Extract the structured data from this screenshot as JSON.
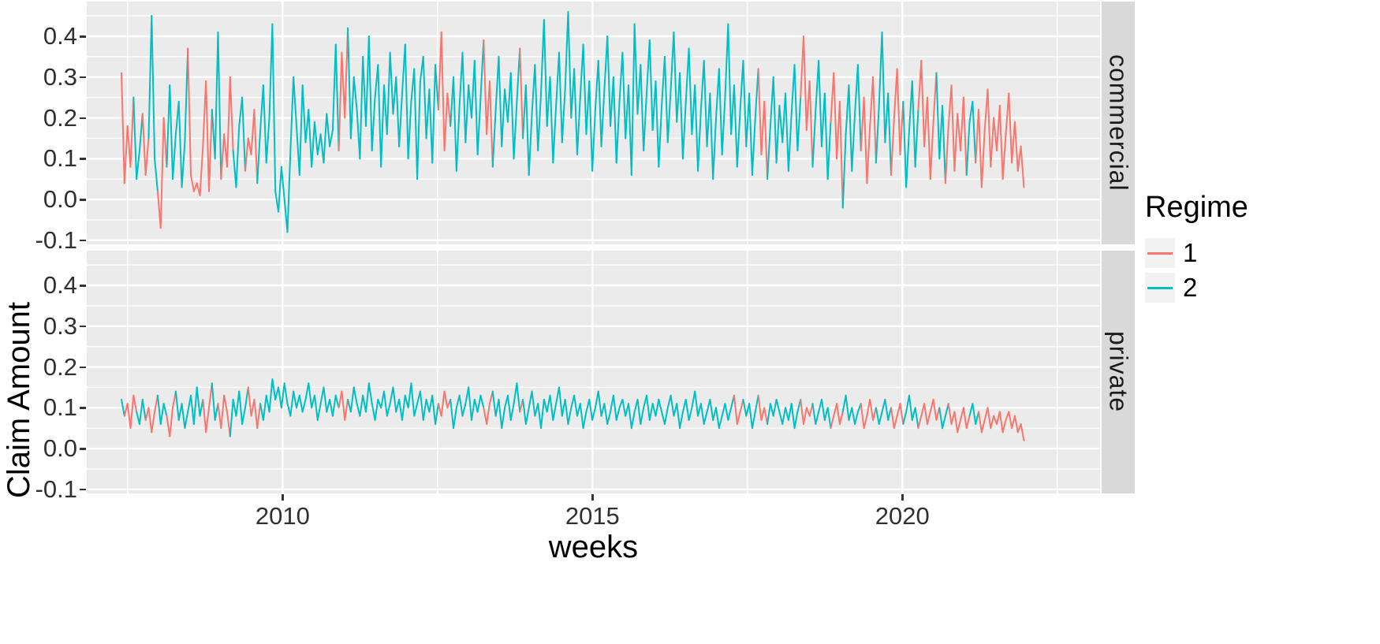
{
  "figure": {
    "y_axis_title": "Claim Amount",
    "x_axis_title": "weeks",
    "legend": {
      "title": "Regime",
      "entries": [
        {
          "label": "1",
          "regime": "1"
        },
        {
          "label": "2",
          "regime": "2"
        }
      ]
    },
    "colors": {
      "panel_bg": "#EBEBEB",
      "strip_bg": "#D9D9D9",
      "grid": "#FFFFFF",
      "regime1": "#F8766D",
      "regime2": "#00BFC4"
    }
  },
  "chart_data": {
    "type": "line",
    "title": "",
    "xlabel": "weeks",
    "ylabel": "Claim Amount",
    "x_ticks": [
      2010,
      2015,
      2020
    ],
    "x_minor_ticks": [
      2007.5,
      2012.5,
      2017.5,
      2022.5
    ],
    "y_ticks": [
      -0.1,
      0.0,
      0.1,
      0.2,
      0.3,
      0.4
    ],
    "y_minor_ticks": [
      -0.05,
      0.05,
      0.15,
      0.25,
      0.35,
      0.45
    ],
    "xlim": [
      2006.84,
      2023.19
    ],
    "ylim": [
      -0.11,
      0.485
    ],
    "x_start": 2007.4,
    "x_step": 0.0487,
    "legend_title": "Regime",
    "legend_position": "right",
    "grid": true,
    "regimes": {
      "1": "#F8766D",
      "2": "#00BFC4"
    },
    "facets": [
      {
        "name": "commercial",
        "y": [
          0.31,
          0.04,
          0.18,
          0.08,
          0.25,
          0.05,
          0.12,
          0.21,
          0.06,
          0.15,
          0.45,
          0.1,
          0.02,
          -0.07,
          0.2,
          0.08,
          0.28,
          0.05,
          0.16,
          0.24,
          0.03,
          0.14,
          0.37,
          0.06,
          0.02,
          0.04,
          0.01,
          0.13,
          0.29,
          0.02,
          0.22,
          0.1,
          0.41,
          0.05,
          0.16,
          0.08,
          0.3,
          0.12,
          0.03,
          0.18,
          0.25,
          0.07,
          0.15,
          0.11,
          0.22,
          0.04,
          0.17,
          0.28,
          0.09,
          0.2,
          0.43,
          0.02,
          -0.03,
          0.08,
          0.0,
          -0.08,
          0.12,
          0.3,
          0.18,
          0.06,
          0.28,
          0.14,
          0.22,
          0.08,
          0.19,
          0.11,
          0.16,
          0.09,
          0.21,
          0.13,
          0.17,
          0.38,
          0.12,
          0.36,
          0.2,
          0.42,
          0.15,
          0.3,
          0.22,
          0.1,
          0.35,
          0.18,
          0.4,
          0.12,
          0.25,
          0.33,
          0.08,
          0.28,
          0.16,
          0.36,
          0.21,
          0.3,
          0.13,
          0.26,
          0.38,
          0.1,
          0.24,
          0.32,
          0.05,
          0.29,
          0.35,
          0.15,
          0.27,
          0.09,
          0.33,
          0.22,
          0.41,
          0.12,
          0.26,
          0.18,
          0.3,
          0.07,
          0.23,
          0.36,
          0.14,
          0.28,
          0.2,
          0.34,
          0.11,
          0.25,
          0.39,
          0.16,
          0.29,
          0.08,
          0.22,
          0.35,
          0.13,
          0.27,
          0.19,
          0.31,
          0.1,
          0.24,
          0.37,
          0.15,
          0.28,
          0.06,
          0.21,
          0.33,
          0.12,
          0.26,
          0.44,
          0.18,
          0.3,
          0.09,
          0.23,
          0.36,
          0.14,
          0.27,
          0.46,
          0.2,
          0.32,
          0.11,
          0.25,
          0.38,
          0.16,
          0.29,
          0.07,
          0.22,
          0.34,
          0.13,
          0.27,
          0.4,
          0.18,
          0.3,
          0.09,
          0.24,
          0.36,
          0.15,
          0.28,
          0.06,
          0.43,
          0.21,
          0.33,
          0.12,
          0.26,
          0.39,
          0.17,
          0.29,
          0.08,
          0.23,
          0.35,
          0.14,
          0.27,
          0.41,
          0.19,
          0.31,
          0.1,
          0.24,
          0.37,
          0.16,
          0.28,
          0.07,
          0.22,
          0.34,
          0.13,
          0.26,
          0.05,
          0.2,
          0.32,
          0.11,
          0.25,
          0.43,
          0.16,
          0.28,
          0.08,
          0.22,
          0.34,
          0.13,
          0.26,
          0.06,
          0.2,
          0.32,
          0.11,
          0.24,
          0.05,
          0.18,
          0.3,
          0.09,
          0.23,
          0.14,
          0.26,
          0.07,
          0.21,
          0.33,
          0.12,
          0.25,
          0.4,
          0.17,
          0.29,
          0.08,
          0.22,
          0.34,
          0.13,
          0.26,
          0.05,
          0.19,
          0.31,
          0.1,
          0.24,
          -0.02,
          0.16,
          0.28,
          0.07,
          0.21,
          0.33,
          0.12,
          0.25,
          0.04,
          0.18,
          0.3,
          0.09,
          0.23,
          0.41,
          0.14,
          0.26,
          0.06,
          0.2,
          0.32,
          0.11,
          0.24,
          0.03,
          0.17,
          0.29,
          0.08,
          0.22,
          0.34,
          0.13,
          0.25,
          0.05,
          0.19,
          0.31,
          0.1,
          0.23,
          0.04,
          0.18,
          0.28,
          0.07,
          0.21,
          0.12,
          0.25,
          0.06,
          0.19,
          0.24,
          0.09,
          0.22,
          0.03,
          0.17,
          0.27,
          0.08,
          0.2,
          0.12,
          0.23,
          0.05,
          0.16,
          0.26,
          0.09,
          0.19,
          0.07,
          0.13,
          0.03
        ],
        "red_segments": [
          [
            1,
            4
          ],
          [
            8,
            9
          ],
          [
            13,
            15
          ],
          [
            23,
            30
          ],
          [
            34,
            37
          ],
          [
            42,
            45
          ],
          [
            73,
            75
          ],
          [
            106,
            109
          ],
          [
            121,
            123
          ],
          [
            133,
            133
          ],
          [
            212,
            214
          ],
          [
            226,
            229
          ],
          [
            236,
            239
          ],
          [
            246,
            250
          ],
          [
            256,
            259
          ],
          [
            265,
            270
          ],
          [
            274,
            280
          ],
          [
            284,
            299
          ]
        ]
      },
      {
        "name": "private",
        "y": [
          0.12,
          0.08,
          0.11,
          0.05,
          0.13,
          0.09,
          0.06,
          0.12,
          0.07,
          0.1,
          0.04,
          0.09,
          0.13,
          0.06,
          0.11,
          0.08,
          0.03,
          0.1,
          0.14,
          0.07,
          0.11,
          0.05,
          0.09,
          0.13,
          0.06,
          0.15,
          0.08,
          0.12,
          0.04,
          0.1,
          0.16,
          0.07,
          0.11,
          0.05,
          0.13,
          0.09,
          0.03,
          0.12,
          0.08,
          0.14,
          0.06,
          0.1,
          0.15,
          0.08,
          0.12,
          0.05,
          0.11,
          0.07,
          0.13,
          0.09,
          0.17,
          0.12,
          0.15,
          0.1,
          0.16,
          0.11,
          0.08,
          0.14,
          0.1,
          0.13,
          0.09,
          0.12,
          0.16,
          0.1,
          0.13,
          0.07,
          0.11,
          0.15,
          0.09,
          0.12,
          0.08,
          0.13,
          0.1,
          0.14,
          0.07,
          0.12,
          0.09,
          0.15,
          0.11,
          0.08,
          0.13,
          0.09,
          0.16,
          0.11,
          0.07,
          0.12,
          0.1,
          0.14,
          0.08,
          0.11,
          0.15,
          0.09,
          0.12,
          0.07,
          0.13,
          0.1,
          0.16,
          0.08,
          0.11,
          0.14,
          0.07,
          0.12,
          0.09,
          0.13,
          0.06,
          0.11,
          0.08,
          0.14,
          0.1,
          0.12,
          0.05,
          0.1,
          0.13,
          0.08,
          0.11,
          0.15,
          0.07,
          0.12,
          0.09,
          0.13,
          0.1,
          0.06,
          0.11,
          0.14,
          0.08,
          0.12,
          0.05,
          0.1,
          0.13,
          0.07,
          0.11,
          0.16,
          0.09,
          0.12,
          0.06,
          0.1,
          0.14,
          0.08,
          0.11,
          0.05,
          0.12,
          0.09,
          0.13,
          0.07,
          0.11,
          0.15,
          0.08,
          0.12,
          0.06,
          0.1,
          0.13,
          0.08,
          0.11,
          0.05,
          0.09,
          0.12,
          0.07,
          0.1,
          0.14,
          0.08,
          0.11,
          0.06,
          0.09,
          0.13,
          0.07,
          0.1,
          0.12,
          0.08,
          0.11,
          0.05,
          0.09,
          0.12,
          0.06,
          0.1,
          0.13,
          0.07,
          0.11,
          0.08,
          0.12,
          0.09,
          0.06,
          0.1,
          0.13,
          0.08,
          0.11,
          0.05,
          0.09,
          0.12,
          0.07,
          0.1,
          0.14,
          0.08,
          0.11,
          0.06,
          0.09,
          0.12,
          0.07,
          0.1,
          0.05,
          0.08,
          0.11,
          0.07,
          0.1,
          0.13,
          0.06,
          0.09,
          0.12,
          0.08,
          0.11,
          0.05,
          0.09,
          0.13,
          0.07,
          0.1,
          0.06,
          0.11,
          0.08,
          0.12,
          0.09,
          0.06,
          0.1,
          0.07,
          0.11,
          0.05,
          0.09,
          0.12,
          0.06,
          0.1,
          0.08,
          0.11,
          0.06,
          0.09,
          0.12,
          0.07,
          0.1,
          0.05,
          0.08,
          0.11,
          0.06,
          0.09,
          0.13,
          0.07,
          0.1,
          0.06,
          0.09,
          0.11,
          0.05,
          0.08,
          0.12,
          0.07,
          0.1,
          0.06,
          0.09,
          0.12,
          0.07,
          0.1,
          0.05,
          0.08,
          0.11,
          0.06,
          0.09,
          0.13,
          0.07,
          0.1,
          0.05,
          0.08,
          0.11,
          0.06,
          0.09,
          0.12,
          0.07,
          0.1,
          0.05,
          0.08,
          0.11,
          0.06,
          0.09,
          0.04,
          0.07,
          0.1,
          0.05,
          0.08,
          0.11,
          0.06,
          0.09,
          0.04,
          0.07,
          0.1,
          0.05,
          0.08,
          0.06,
          0.09,
          0.04,
          0.07,
          0.09,
          0.05,
          0.08,
          0.04,
          0.06,
          0.02
        ],
        "red_segments": [
          [
            2,
            5
          ],
          [
            9,
            12
          ],
          [
            16,
            18
          ],
          [
            28,
            30
          ],
          [
            33,
            36
          ],
          [
            43,
            46
          ],
          [
            73,
            75
          ],
          [
            106,
            109
          ],
          [
            121,
            123
          ],
          [
            133,
            133
          ],
          [
            204,
            206
          ],
          [
            212,
            214
          ],
          [
            226,
            229
          ],
          [
            236,
            239
          ],
          [
            246,
            250
          ],
          [
            256,
            259
          ],
          [
            265,
            271
          ],
          [
            275,
            281
          ],
          [
            285,
            299
          ]
        ]
      }
    ]
  }
}
